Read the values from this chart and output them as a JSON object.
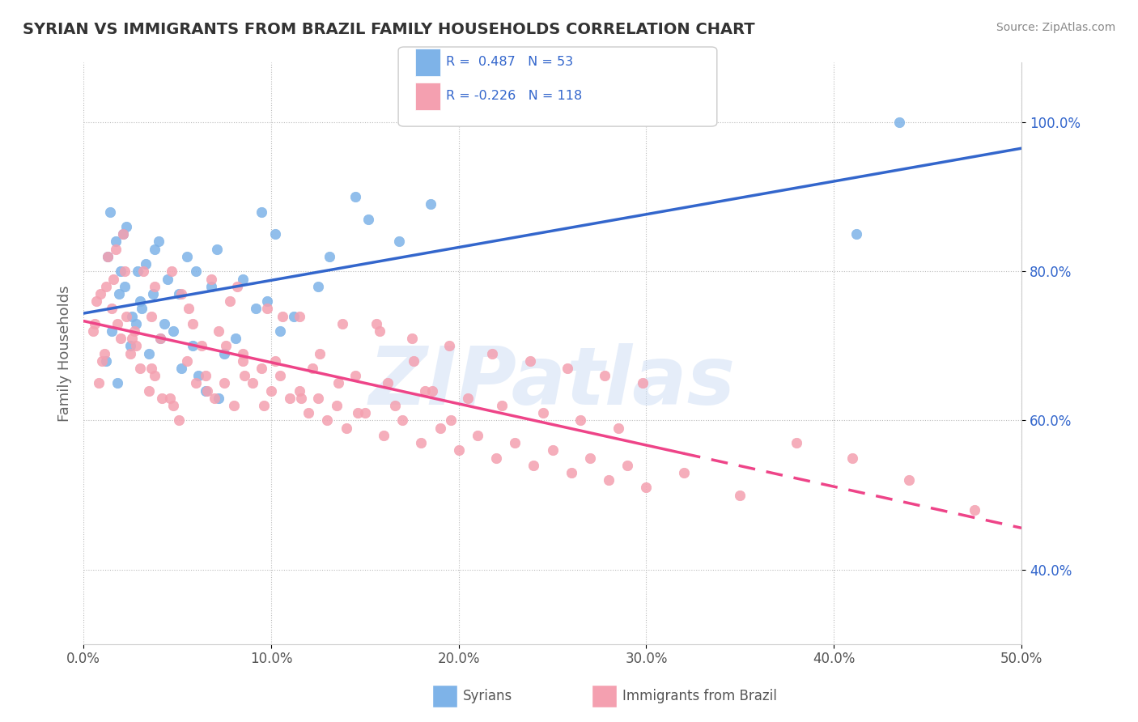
{
  "title": "SYRIAN VS IMMIGRANTS FROM BRAZIL FAMILY HOUSEHOLDS CORRELATION CHART",
  "source": "Source: ZipAtlas.com",
  "xlabel_bottom": "",
  "ylabel": "Family Households",
  "x_ticks": [
    "0.0%",
    "10.0%",
    "20.0%",
    "30.0%",
    "40.0%",
    "50.0%"
  ],
  "x_tick_vals": [
    0,
    10,
    20,
    30,
    40,
    50
  ],
  "y_ticks": [
    "40.0%",
    "60.0%",
    "80.0%",
    "100.0%"
  ],
  "y_tick_vals": [
    40,
    60,
    80,
    100
  ],
  "xlim": [
    0,
    50
  ],
  "ylim": [
    30,
    108
  ],
  "legend_blue_label": "R =  0.487   N = 53",
  "legend_pink_label": "R = -0.226   N = 118",
  "blue_R": 0.487,
  "blue_N": 53,
  "pink_R": -0.226,
  "pink_N": 118,
  "blue_color": "#7EB3E8",
  "pink_color": "#F4A0B0",
  "blue_line_color": "#3366CC",
  "pink_line_color": "#EE4488",
  "watermark": "ZIPatlas",
  "watermark_color": "#CCDDF5",
  "legend_x_text_color": "#3366CC",
  "syrians_x": [
    1.2,
    1.5,
    2.0,
    1.8,
    2.5,
    3.1,
    2.2,
    1.3,
    1.9,
    2.8,
    3.5,
    4.1,
    3.8,
    2.3,
    1.7,
    2.6,
    3.0,
    4.5,
    5.2,
    6.1,
    4.8,
    3.3,
    2.1,
    1.4,
    5.8,
    6.5,
    7.2,
    4.3,
    3.7,
    2.9,
    8.1,
    7.5,
    9.2,
    6.8,
    5.5,
    4.0,
    10.5,
    9.8,
    8.5,
    7.1,
    6.0,
    5.1,
    11.2,
    12.5,
    13.1,
    10.2,
    9.5,
    14.5,
    15.2,
    16.8,
    18.5,
    43.5,
    41.2
  ],
  "syrians_y": [
    68,
    72,
    80,
    65,
    70,
    75,
    78,
    82,
    77,
    73,
    69,
    71,
    83,
    86,
    84,
    74,
    76,
    79,
    67,
    66,
    72,
    81,
    85,
    88,
    70,
    64,
    63,
    73,
    77,
    80,
    71,
    69,
    75,
    78,
    82,
    84,
    72,
    76,
    79,
    83,
    80,
    77,
    74,
    78,
    82,
    85,
    88,
    90,
    87,
    84,
    89,
    100,
    85
  ],
  "brazil_x": [
    0.5,
    1.0,
    1.5,
    2.0,
    0.8,
    1.2,
    2.5,
    1.8,
    2.2,
    3.0,
    0.7,
    1.3,
    2.8,
    3.5,
    1.6,
    2.1,
    3.8,
    4.2,
    0.9,
    1.7,
    4.8,
    5.1,
    2.3,
    3.2,
    5.5,
    6.0,
    2.7,
    3.8,
    6.5,
    7.0,
    4.1,
    5.2,
    7.5,
    8.0,
    3.6,
    4.7,
    8.5,
    9.0,
    5.8,
    6.8,
    9.5,
    10.0,
    7.2,
    8.2,
    10.5,
    11.0,
    6.3,
    7.8,
    11.5,
    12.0,
    8.5,
    9.8,
    12.5,
    13.0,
    10.2,
    11.5,
    13.5,
    14.0,
    12.2,
    13.8,
    15.0,
    16.0,
    14.5,
    15.8,
    17.0,
    18.0,
    16.2,
    17.5,
    19.0,
    20.0,
    18.2,
    19.5,
    21.0,
    22.0,
    20.5,
    21.8,
    23.0,
    24.0,
    22.3,
    23.8,
    25.0,
    26.0,
    24.5,
    25.8,
    27.0,
    28.0,
    26.5,
    27.8,
    29.0,
    30.0,
    28.5,
    29.8,
    32.0,
    35.0,
    38.0,
    41.0,
    44.0,
    47.5,
    0.6,
    1.1,
    2.6,
    3.6,
    4.6,
    5.6,
    6.6,
    7.6,
    8.6,
    9.6,
    10.6,
    11.6,
    12.6,
    13.6,
    14.6,
    15.6,
    16.6,
    17.6,
    18.6,
    19.6
  ],
  "brazil_y": [
    72,
    68,
    75,
    71,
    65,
    78,
    69,
    73,
    80,
    67,
    76,
    82,
    70,
    64,
    79,
    85,
    66,
    63,
    77,
    83,
    62,
    60,
    74,
    80,
    68,
    65,
    72,
    78,
    66,
    63,
    71,
    77,
    65,
    62,
    74,
    80,
    68,
    65,
    73,
    79,
    67,
    64,
    72,
    78,
    66,
    63,
    70,
    76,
    64,
    61,
    69,
    75,
    63,
    60,
    68,
    74,
    62,
    59,
    67,
    73,
    61,
    58,
    66,
    72,
    60,
    57,
    65,
    71,
    59,
    56,
    64,
    70,
    58,
    55,
    63,
    69,
    57,
    54,
    62,
    68,
    56,
    53,
    61,
    67,
    55,
    52,
    60,
    66,
    54,
    51,
    59,
    65,
    53,
    50,
    57,
    55,
    52,
    48,
    73,
    69,
    71,
    67,
    63,
    75,
    64,
    70,
    66,
    62,
    74,
    63,
    69,
    65,
    61,
    73,
    62,
    68,
    64,
    60
  ]
}
